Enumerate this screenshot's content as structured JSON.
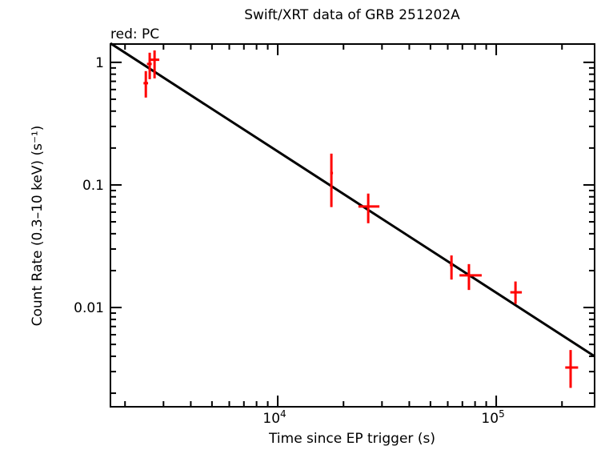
{
  "chart_data": {
    "type": "scatter",
    "title": "Swift/XRT data of GRB 251202A",
    "annotation": "red: PC",
    "xlabel": "Time since EP trigger (s)",
    "ylabel": "Count Rate (0.3–10 keV) (s⁻¹)",
    "xscale": "log",
    "yscale": "log",
    "xlim": [
      1715,
      282000
    ],
    "ylim": [
      0.00155,
      1.41
    ],
    "x_ticks": [
      {
        "value": 10000,
        "base": "10",
        "exp": "4"
      },
      {
        "value": 100000,
        "base": "10",
        "exp": "5"
      }
    ],
    "y_ticks": [
      {
        "value": 1,
        "label": "1"
      },
      {
        "value": 0.1,
        "label": "0.1"
      },
      {
        "value": 0.01,
        "label": "0.01"
      }
    ],
    "grid": false,
    "series": [
      {
        "name": "PC",
        "color": "#ff0000",
        "points": [
          {
            "t": 2490,
            "t_lo": 2430,
            "t_hi": 2550,
            "rate": 0.676,
            "rate_lo": 0.516,
            "rate_hi": 0.848
          },
          {
            "t": 2594,
            "t_lo": 2520,
            "t_hi": 2650,
            "rate": 0.97,
            "rate_lo": 0.729,
            "rate_hi": 1.198
          },
          {
            "t": 2730,
            "t_lo": 2570,
            "t_hi": 2870,
            "rate": 1.05,
            "rate_lo": 0.74,
            "rate_hi": 1.25
          },
          {
            "t": 17600,
            "t_lo": 17400,
            "t_hi": 17900,
            "rate": 0.125,
            "rate_lo": 0.066,
            "rate_hi": 0.18
          },
          {
            "t": 25950,
            "t_lo": 23400,
            "t_hi": 29200,
            "rate": 0.0667,
            "rate_lo": 0.0487,
            "rate_hi": 0.085
          },
          {
            "t": 62400,
            "t_lo": 61300,
            "t_hi": 63400,
            "rate": 0.0222,
            "rate_lo": 0.0169,
            "rate_hi": 0.0266
          },
          {
            "t": 75000,
            "t_lo": 67900,
            "t_hi": 85800,
            "rate": 0.0183,
            "rate_lo": 0.0139,
            "rate_hi": 0.0226
          },
          {
            "t": 122500,
            "t_lo": 116000,
            "t_hi": 131000,
            "rate": 0.0133,
            "rate_lo": 0.0107,
            "rate_hi": 0.0163
          },
          {
            "t": 219000,
            "t_lo": 207000,
            "t_hi": 237000,
            "rate": 0.00324,
            "rate_lo": 0.00221,
            "rate_hi": 0.0045
          }
        ]
      }
    ],
    "model": {
      "type": "power-law",
      "color": "#000000",
      "points": [
        [
          1715,
          1.43
        ],
        [
          282000,
          0.004
        ]
      ]
    }
  }
}
